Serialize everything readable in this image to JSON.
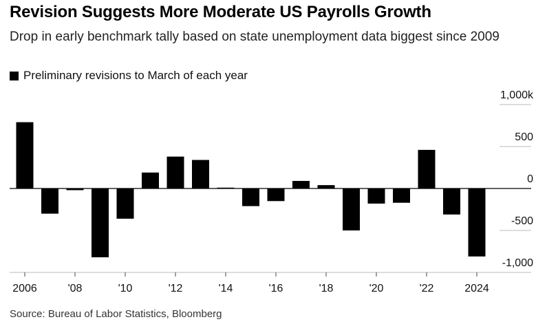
{
  "title": "Revision Suggests More Moderate US Payrolls Growth",
  "subtitle": "Drop in early benchmark tally based on state unemployment data biggest since 2009",
  "source": "Source: Bureau of Labor Statistics, Bloomberg",
  "colors": {
    "bar": "#000000",
    "grid": "#bbbbbb",
    "zero_line": "#000000"
  },
  "chart_data": {
    "type": "bar",
    "title": "Revision Suggests More Moderate US Payrolls Growth",
    "subtitle": "Drop in early benchmark tally based on state unemployment data biggest since 2009",
    "xlabel": "",
    "ylabel": "",
    "categories": [
      "2006",
      "2007",
      "2008",
      "2009",
      "2010",
      "2011",
      "2012",
      "2013",
      "2014",
      "2015",
      "2016",
      "2017",
      "2018",
      "2019",
      "2020",
      "2021",
      "2022",
      "2023",
      "2024"
    ],
    "series": [
      {
        "name": "Preliminary revisions to March of each year",
        "values": [
          790,
          -300,
          -20,
          -820,
          -360,
          190,
          380,
          340,
          10,
          -210,
          -150,
          90,
          40,
          -500,
          -180,
          -170,
          460,
          -310,
          -810
        ]
      }
    ],
    "ylim": [
      -1000,
      1000
    ],
    "y_ticks": [
      1000,
      500,
      0,
      -500,
      -1000
    ],
    "y_tick_labels": [
      "1,000k",
      "500",
      "0",
      "-500",
      "-1,000"
    ],
    "x_tick_labels": [
      {
        "category": "2006",
        "label": "2006"
      },
      {
        "category": "2008",
        "label": "'08"
      },
      {
        "category": "2010",
        "label": "'10"
      },
      {
        "category": "2012",
        "label": "'12"
      },
      {
        "category": "2014",
        "label": "'14"
      },
      {
        "category": "2016",
        "label": "'16"
      },
      {
        "category": "2018",
        "label": "'18"
      },
      {
        "category": "2020",
        "label": "'20"
      },
      {
        "category": "2022",
        "label": "'22"
      },
      {
        "category": "2024",
        "label": "2024"
      }
    ],
    "grid": true,
    "legend": "top-left"
  }
}
